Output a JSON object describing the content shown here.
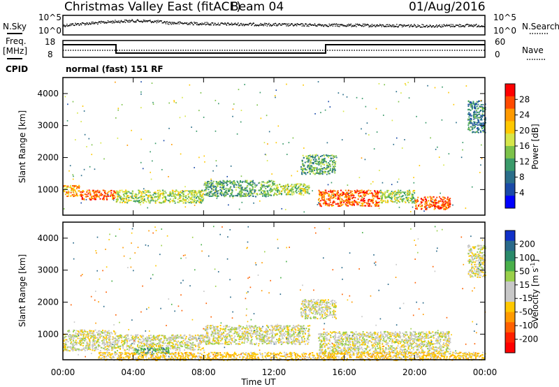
{
  "header": {
    "title": "Christmas Valley East (fitACF)",
    "beam": "Beam 04",
    "date": "01/Aug/2016"
  },
  "noise_panel": {
    "left_label": "N.Sky",
    "right_label": "N.Search",
    "left_ticks": [
      "10^5",
      "10^0"
    ],
    "right_ticks": [
      "10^5",
      "10^0"
    ]
  },
  "freq_panel": {
    "left_label_1": "Freq.",
    "left_label_2": "[MHz]",
    "right_label": "Nave",
    "left_ticks": [
      "18",
      "8"
    ],
    "right_ticks": [
      "60",
      "0"
    ]
  },
  "cpid": {
    "label": "CPID",
    "value": "normal (fast) 151 RF"
  },
  "x_axis": {
    "label": "Time UT",
    "ticks": [
      "00:00",
      "04:00",
      "08:00",
      "12:00",
      "16:00",
      "20:00",
      "00:00"
    ]
  },
  "power_colorbar": {
    "label": "Power [dB]",
    "ticks": [
      "28",
      "24",
      "20",
      "16",
      "12",
      "8",
      "4"
    ],
    "colors": [
      "#ff0000",
      "#ff4a00",
      "#ff9a00",
      "#ffc800",
      "#d6e64a",
      "#7cc24a",
      "#3a9a6a",
      "#2a6e8a",
      "#1a4aa8",
      "#0000ff"
    ]
  },
  "velocity_colorbar": {
    "label_prefix": "Velocity [m s",
    "label_sup": "-1",
    "label_suffix": "]",
    "ticks": [
      "200",
      "100",
      "50",
      "15",
      "-15",
      "-50",
      "-100",
      "-200"
    ],
    "colors": [
      "#1030c8",
      "#2a6a8a",
      "#2a8a6a",
      "#4ab04a",
      "#9ad04a",
      "#c8c8c8",
      "#c8c8c8",
      "#ffc800",
      "#ff9a00",
      "#ff6000",
      "#ff2000",
      "#ff0000"
    ]
  },
  "panels": {
    "ylabel": "Slant Range [km]",
    "yticks": [
      "4000",
      "3000",
      "2000",
      "1000"
    ]
  },
  "chart_data": [
    {
      "type": "line",
      "title": "Christmas Valley East (fitACF)",
      "xlabel": "",
      "ylabel": "N.Sky",
      "x_range": [
        "00:00",
        "24:00"
      ],
      "y_scale": "log",
      "ylim": [
        1,
        100000
      ],
      "series": [
        {
          "name": "N.Sky",
          "x": [
            0,
            1,
            2,
            3,
            4,
            5,
            6,
            7,
            8,
            9,
            10,
            11,
            12,
            13,
            14,
            15,
            16,
            17,
            18,
            19,
            20,
            21,
            22,
            23,
            24
          ],
          "values": [
            300,
            1000,
            2000,
            5000,
            8000,
            6000,
            2000,
            1500,
            1200,
            900,
            800,
            700,
            600,
            500,
            500,
            450,
            400,
            350,
            300,
            300,
            280,
            250,
            300,
            350,
            300
          ]
        }
      ]
    },
    {
      "type": "line",
      "xlabel": "",
      "ylabel": "Freq. [MHz]",
      "x_range": [
        "00:00",
        "24:00"
      ],
      "ylim": [
        8,
        18
      ],
      "series": [
        {
          "name": "Freq.",
          "x": [
            0,
            3,
            3,
            15,
            15,
            24
          ],
          "values": [
            15.5,
            15.5,
            10.5,
            10.5,
            15.5,
            15.5
          ]
        }
      ]
    },
    {
      "type": "heatmap",
      "xlabel": "Time UT",
      "ylabel": "Slant Range [km]",
      "x_ticks": [
        "00:00",
        "04:00",
        "08:00",
        "12:00",
        "16:00",
        "20:00",
        "00:00"
      ],
      "ylim": [
        200,
        4500
      ],
      "colorbar": {
        "label": "Power [dB]",
        "range": [
          0,
          32
        ],
        "ticks": [
          4,
          8,
          12,
          16,
          20,
          24,
          28
        ]
      },
      "regions": [
        {
          "t": [
            0.0,
            1.0
          ],
          "range_km": [
            800,
            1150
          ],
          "power_db": 24
        },
        {
          "t": [
            1.0,
            3.0
          ],
          "range_km": [
            700,
            1000
          ],
          "power_db": 28
        },
        {
          "t": [
            3.0,
            8.0
          ],
          "range_km": [
            600,
            1000
          ],
          "power_db": 16
        },
        {
          "t": [
            8.0,
            12.0
          ],
          "range_km": [
            800,
            1300
          ],
          "power_db": 12
        },
        {
          "t": [
            12.0,
            14.0
          ],
          "range_km": [
            850,
            1200
          ],
          "power_db": 16
        },
        {
          "t": [
            13.5,
            15.5
          ],
          "range_km": [
            1500,
            2100
          ],
          "power_db": 12
        },
        {
          "t": [
            14.5,
            18.0
          ],
          "range_km": [
            500,
            1000
          ],
          "power_db": 28
        },
        {
          "t": [
            18.0,
            20.0
          ],
          "range_km": [
            600,
            1000
          ],
          "power_db": 16
        },
        {
          "t": [
            20.0,
            22.0
          ],
          "range_km": [
            400,
            800
          ],
          "power_db": 28
        },
        {
          "t": [
            23.0,
            24.0
          ],
          "range_km": [
            2800,
            3800
          ],
          "power_db": 8
        }
      ]
    },
    {
      "type": "heatmap",
      "xlabel": "Time UT",
      "ylabel": "Slant Range [km]",
      "x_ticks": [
        "00:00",
        "04:00",
        "08:00",
        "12:00",
        "16:00",
        "20:00",
        "00:00"
      ],
      "ylim": [
        200,
        4500
      ],
      "colorbar": {
        "label": "Velocity [m s-1]",
        "range": [
          -250,
          250
        ],
        "ticks": [
          200,
          100,
          50,
          15,
          -15,
          -50,
          -100,
          -200
        ]
      },
      "regions": [
        {
          "t": [
            0.0,
            3.0
          ],
          "range_km": [
            500,
            1150
          ],
          "velocity": 0
        },
        {
          "t": [
            3.0,
            8.0
          ],
          "range_km": [
            500,
            1000
          ],
          "velocity": 0
        },
        {
          "t": [
            4.0,
            6.0
          ],
          "range_km": [
            400,
            600
          ],
          "velocity": 60
        },
        {
          "t": [
            8.0,
            14.0
          ],
          "range_km": [
            700,
            1300
          ],
          "velocity": 0
        },
        {
          "t": [
            13.5,
            15.5
          ],
          "range_km": [
            1500,
            2100
          ],
          "velocity": 0
        },
        {
          "t": [
            14.5,
            22.0
          ],
          "range_km": [
            400,
            1100
          ],
          "velocity": 0
        },
        {
          "t": [
            2.0,
            24.0
          ],
          "range_km": [
            200,
            450
          ],
          "velocity": -30
        },
        {
          "t": [
            23.0,
            24.0
          ],
          "range_km": [
            2800,
            3800
          ],
          "velocity": 0
        }
      ]
    }
  ]
}
